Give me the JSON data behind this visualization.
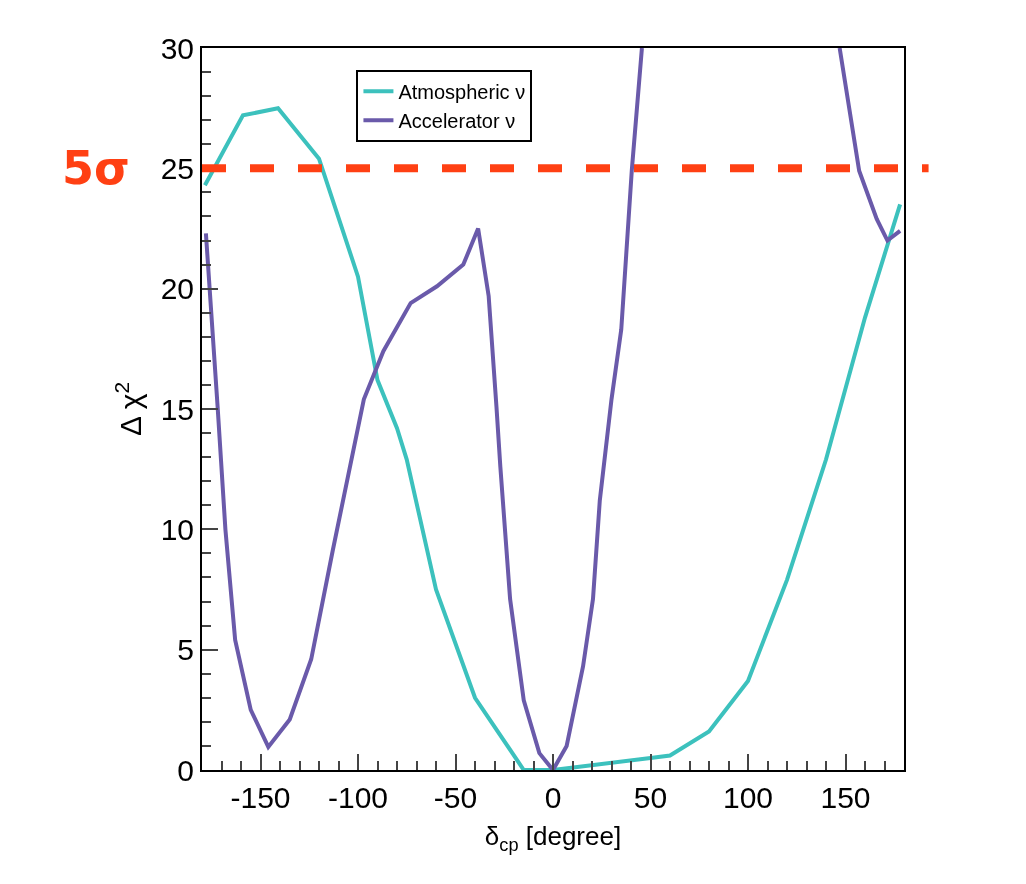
{
  "chart_data": {
    "type": "line",
    "xlabel": "δ$_{cp}$ [degree]",
    "ylabel": "Δ χ$^{2}$",
    "xlim": [
      -180,
      180
    ],
    "xticks": [
      -150,
      -100,
      -50,
      0,
      50,
      100,
      150
    ],
    "ylim": [
      0,
      30
    ],
    "yticks": [
      0,
      5,
      10,
      15,
      20,
      25,
      30
    ],
    "legend": "top",
    "marker": "none",
    "line_style": "solid",
    "ref_lines": [
      {
        "axis": "y",
        "value": 25,
        "label": "5σ",
        "color": "#ff4013",
        "line_style": "dashed"
      }
    ],
    "series": [
      {
        "name": "Atmospheric ν",
        "color": "#3cc1bd",
        "x": [
          -178.5,
          -159,
          -141,
          -120,
          -100,
          -90,
          -80,
          -75,
          -60,
          -40,
          -15,
          0,
          50,
          60,
          80,
          100,
          120,
          140,
          160,
          178
        ],
        "values": [
          24.3,
          27.2,
          27.5,
          25.4,
          20.5,
          16.2,
          14.2,
          12.9,
          7.5,
          3.0,
          0,
          0,
          0.5,
          0.6,
          1.6,
          3.7,
          7.9,
          12.9,
          18.8,
          23.5
        ]
      },
      {
        "name": "Accelerator ν",
        "color": "#6a5aaa",
        "x": [
          -178,
          -172,
          -168,
          -163,
          -155,
          -146,
          -135,
          -124,
          -113,
          -97,
          -87,
          -73,
          -59.5,
          -46,
          -38.4,
          -33,
          -29,
          -27,
          -22,
          -15,
          -7,
          0,
          7,
          15.4,
          20.5,
          24,
          30,
          35,
          40.4,
          45.6,
          100,
          147,
          157,
          166,
          171.5,
          178
        ],
        "values": [
          22.3,
          15.1,
          10.0,
          5.4,
          2.5,
          0.96,
          2.1,
          4.6,
          9.1,
          15.4,
          17.4,
          19.4,
          20.1,
          21.0,
          22.5,
          19.7,
          15.1,
          12.6,
          7.1,
          2.9,
          0.7,
          0,
          1.0,
          4.3,
          7.1,
          11.2,
          15.4,
          18.3,
          24.9,
          30,
          null,
          30,
          24.9,
          22.9,
          22.0,
          22.4
        ]
      }
    ]
  }
}
